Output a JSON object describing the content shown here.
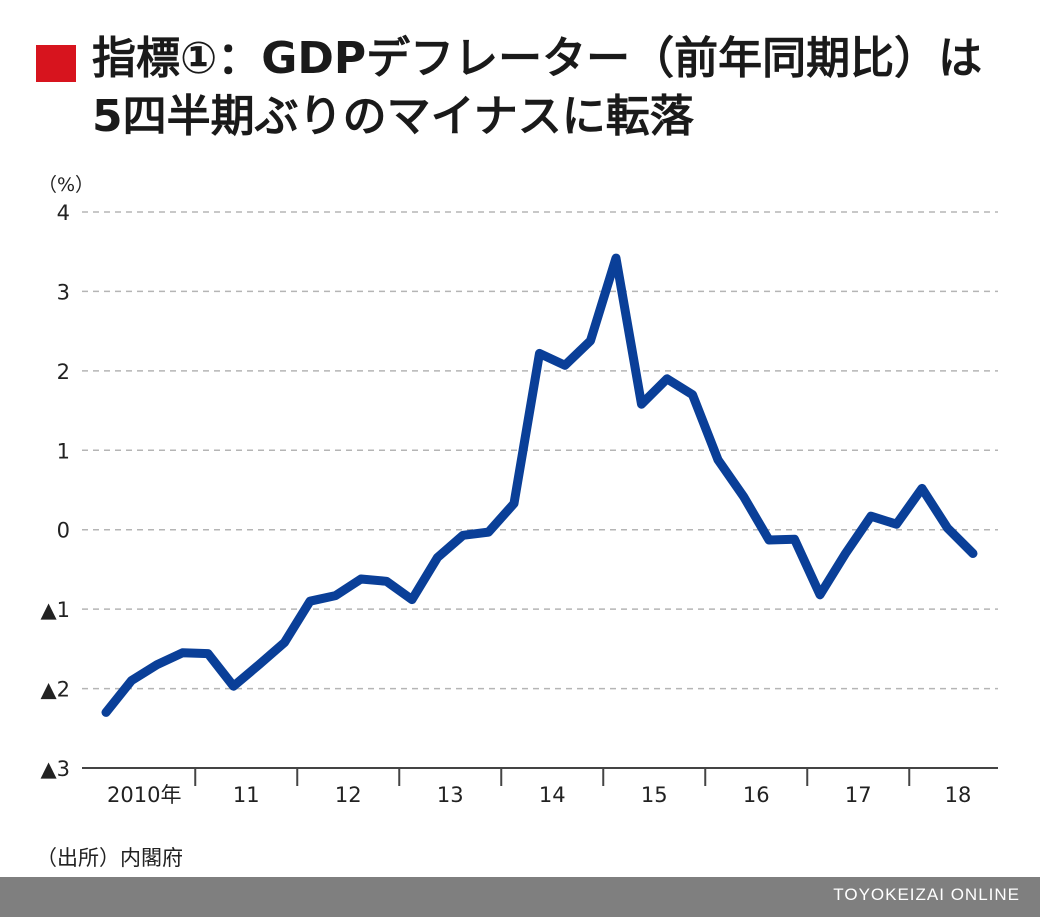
{
  "title": {
    "line1": "指標①：GDPデフレーター（前年同期比）は",
    "line2": "5四半期ぶりのマイナスに転落"
  },
  "colors": {
    "marker": "#d7141e",
    "line": "#0a3f98",
    "grid": "#b5b5b5",
    "footer": "#7f7f7f"
  },
  "source": "（出所）内閣府",
  "footer": "TOYOKEIZAI ONLINE",
  "chart_data": {
    "type": "line",
    "ylabel": "（%）",
    "ylim": [
      -3,
      4
    ],
    "yticks": [
      4,
      3,
      2,
      1,
      0,
      -1,
      -2,
      -3
    ],
    "ytick_labels": [
      "4",
      "3",
      "2",
      "1",
      "0",
      "▲1",
      "▲2",
      "▲3"
    ],
    "grid": true,
    "year_labels": [
      "2010年",
      "11",
      "12",
      "13",
      "14",
      "15",
      "16",
      "17",
      "18"
    ],
    "series": [
      {
        "x": [
          "2010Q1",
          "2010Q2",
          "2010Q3",
          "2010Q4",
          "2011Q1",
          "2011Q2",
          "2011Q3",
          "2011Q4",
          "2012Q1",
          "2012Q2",
          "2012Q3",
          "2012Q4",
          "2013Q1",
          "2013Q2",
          "2013Q3",
          "2013Q4",
          "2014Q1",
          "2014Q2",
          "2014Q3",
          "2014Q4",
          "2015Q1",
          "2015Q2",
          "2015Q3",
          "2015Q4",
          "2016Q1",
          "2016Q2",
          "2016Q3",
          "2016Q4",
          "2017Q1",
          "2017Q2",
          "2017Q3",
          "2017Q4",
          "2018Q1",
          "2018Q2",
          "2018Q3"
        ],
        "values": [
          -2.3,
          -1.9,
          -1.7,
          -1.55,
          -1.56,
          -1.97,
          -1.7,
          -1.42,
          -0.9,
          -0.83,
          -0.62,
          -0.65,
          -0.88,
          -0.35,
          -0.07,
          -0.03,
          0.33,
          2.22,
          2.07,
          2.38,
          3.42,
          1.58,
          1.9,
          1.7,
          0.88,
          0.42,
          -0.13,
          -0.12,
          -0.82,
          -0.3,
          0.17,
          0.07,
          0.52,
          0.02,
          -0.3
        ]
      }
    ]
  }
}
